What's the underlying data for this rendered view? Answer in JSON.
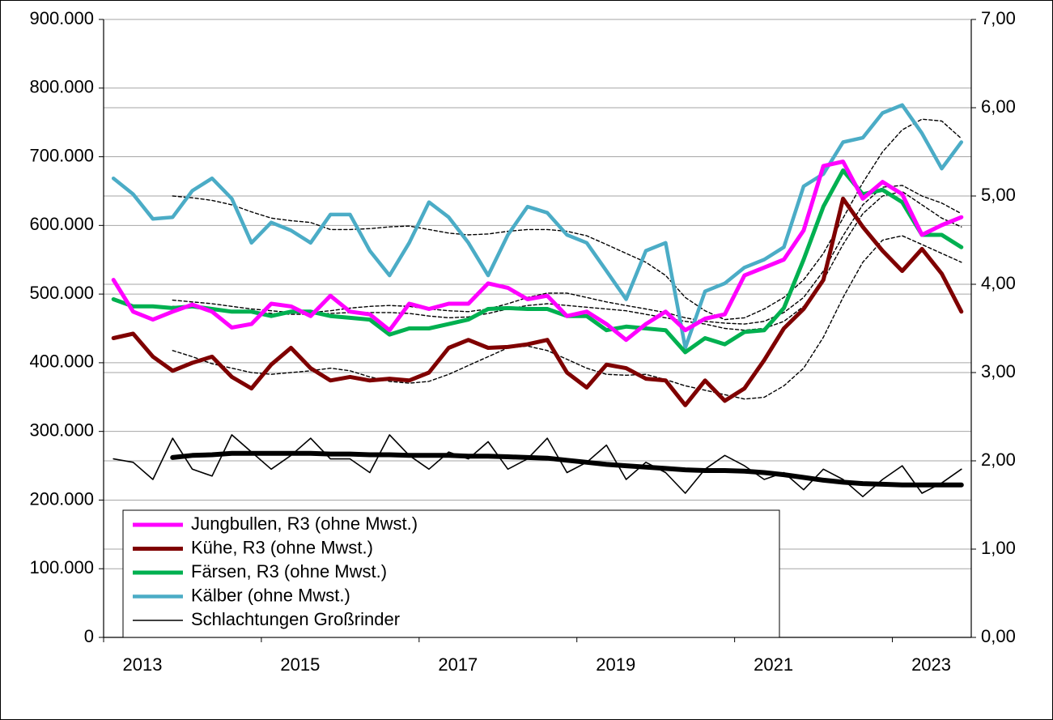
{
  "chart_data": {
    "type": "line",
    "x": [
      2013.125,
      2013.375,
      2013.625,
      2013.875,
      2014.125,
      2014.375,
      2014.625,
      2014.875,
      2015.125,
      2015.375,
      2015.625,
      2015.875,
      2016.125,
      2016.375,
      2016.625,
      2016.875,
      2017.125,
      2017.375,
      2017.625,
      2017.875,
      2018.125,
      2018.375,
      2018.625,
      2018.875,
      2019.125,
      2019.375,
      2019.625,
      2019.875,
      2020.125,
      2020.375,
      2020.625,
      2020.875,
      2021.125,
      2021.375,
      2021.625,
      2021.875,
      2022.125,
      2022.375,
      2022.625,
      2022.875,
      2023.125,
      2023.375,
      2023.625,
      2023.875
    ],
    "xlim": [
      2013,
      2024
    ],
    "xticks": [
      2013,
      2015,
      2017,
      2019,
      2021,
      2023
    ],
    "ylim": [
      0,
      900000
    ],
    "yticks": [
      0,
      {
        "value": 100000,
        "label": "100.000"
      },
      {
        "value": 200000,
        "label": "200.000"
      },
      {
        "value": 300000,
        "label": "300.000"
      },
      {
        "value": 400000,
        "label": "400.000"
      },
      {
        "value": 500000,
        "label": "500.000"
      },
      {
        "value": 600000,
        "label": "600.000"
      },
      {
        "value": 700000,
        "label": "700.000"
      },
      {
        "value": 800000,
        "label": "800.000"
      },
      {
        "value": 900000,
        "label": "900.000"
      }
    ],
    "y2lim": [
      0,
      7
    ],
    "y2ticks": [
      {
        "value": 0,
        "label": "0,00"
      },
      {
        "value": 1,
        "label": "1,00"
      },
      {
        "value": 2,
        "label": "2,00"
      },
      {
        "value": 3,
        "label": "3,00"
      },
      {
        "value": 4,
        "label": "4,00"
      },
      {
        "value": 5,
        "label": "5,00"
      },
      {
        "value": 6,
        "label": "6,00"
      },
      {
        "value": 7,
        "label": "7,00"
      }
    ],
    "grid": true,
    "legend": "lower left",
    "series": [
      {
        "name": "Schlachtungen Großrinder",
        "color": "#000000",
        "line_width": 1.6,
        "values": [
          260000,
          255000,
          230000,
          290000,
          245000,
          235000,
          295000,
          270000,
          245000,
          265000,
          290000,
          260000,
          260000,
          240000,
          295000,
          265000,
          245000,
          270000,
          260000,
          285000,
          245000,
          260000,
          290000,
          240000,
          255000,
          280000,
          230000,
          255000,
          240000,
          210000,
          245000,
          265000,
          250000,
          230000,
          240000,
          215000,
          245000,
          230000,
          205000,
          230000,
          250000,
          210000,
          225000,
          245000
        ]
      },
      {
        "color": "#000000",
        "line_width": 6,
        "values": [
          null,
          null,
          null,
          262000,
          265000,
          266000,
          268000,
          268000,
          268000,
          268000,
          268000,
          267000,
          267000,
          266000,
          266000,
          265000,
          265000,
          265000,
          264000,
          264000,
          263000,
          262000,
          261000,
          258000,
          255000,
          252000,
          250000,
          248000,
          246000,
          244000,
          243000,
          243000,
          242000,
          240000,
          237000,
          233000,
          229000,
          226000,
          224000,
          223000,
          222000,
          222000,
          222000,
          222000
        ]
      },
      {
        "color": "#000000",
        "axis": "y2",
        "dash": true,
        "line_width": 1.4,
        "values": [
          null,
          null,
          null,
          5.0,
          4.98,
          4.95,
          4.9,
          4.82,
          4.75,
          4.72,
          4.7,
          4.62,
          4.62,
          4.63,
          4.65,
          4.66,
          4.62,
          4.58,
          4.56,
          4.57,
          4.6,
          4.62,
          4.62,
          4.6,
          4.55,
          4.45,
          4.35,
          4.25,
          4.1,
          3.85,
          3.7,
          3.6,
          3.62,
          3.72,
          3.85,
          4.05,
          4.35,
          4.75,
          5.15,
          5.5,
          5.75,
          5.87,
          5.85,
          5.65
        ]
      },
      {
        "color": "#000000",
        "axis": "y2",
        "dash": true,
        "line_width": 1.4,
        "values": [
          null,
          null,
          null,
          3.82,
          3.8,
          3.78,
          3.75,
          3.72,
          3.7,
          3.68,
          3.68,
          3.7,
          3.73,
          3.75,
          3.76,
          3.75,
          3.72,
          3.7,
          3.69,
          3.72,
          3.78,
          3.85,
          3.9,
          3.9,
          3.85,
          3.8,
          3.76,
          3.72,
          3.68,
          3.62,
          3.58,
          3.56,
          3.55,
          3.58,
          3.68,
          3.85,
          4.15,
          4.55,
          4.9,
          5.1,
          5.12,
          5.0,
          4.92,
          4.8
        ]
      },
      {
        "color": "#000000",
        "axis": "y2",
        "dash": true,
        "line_width": 1.4,
        "values": [
          null,
          null,
          null,
          3.75,
          3.74,
          3.72,
          3.7,
          3.68,
          3.67,
          3.66,
          3.66,
          3.67,
          3.68,
          3.68,
          3.68,
          3.67,
          3.64,
          3.62,
          3.63,
          3.67,
          3.72,
          3.76,
          3.78,
          3.76,
          3.74,
          3.72,
          3.7,
          3.66,
          3.62,
          3.58,
          3.55,
          3.5,
          3.48,
          3.5,
          3.58,
          3.75,
          4.05,
          4.45,
          4.8,
          5.0,
          5.05,
          4.9,
          4.75,
          4.65
        ]
      },
      {
        "color": "#000000",
        "axis": "y2",
        "dash": true,
        "line_width": 1.4,
        "values": [
          null,
          null,
          null,
          3.25,
          3.18,
          3.1,
          3.05,
          3.0,
          2.98,
          3.0,
          3.02,
          3.05,
          3.02,
          2.95,
          2.9,
          2.88,
          2.9,
          2.98,
          3.08,
          3.18,
          3.28,
          3.3,
          3.25,
          3.15,
          3.05,
          2.98,
          2.97,
          2.98,
          2.92,
          2.85,
          2.8,
          2.75,
          2.7,
          2.72,
          2.85,
          3.05,
          3.4,
          3.85,
          4.25,
          4.5,
          4.55,
          4.45,
          4.35,
          4.25
        ]
      },
      {
        "name": "Kälber (ohne Mwst.)",
        "color": "#4bacc6",
        "axis": "y2",
        "line_width": 4.5,
        "values": [
          5.2,
          5.02,
          4.74,
          4.76,
          5.06,
          5.2,
          4.97,
          4.47,
          4.7,
          4.61,
          4.47,
          4.79,
          4.79,
          4.38,
          4.1,
          4.47,
          4.93,
          4.76,
          4.47,
          4.1,
          4.56,
          4.88,
          4.81,
          4.56,
          4.47,
          4.15,
          3.83,
          4.38,
          4.47,
          3.28,
          3.92,
          4.01,
          4.19,
          4.28,
          4.42,
          5.11,
          5.25,
          5.61,
          5.66,
          5.94,
          6.03,
          5.71,
          5.31,
          5.61
        ]
      },
      {
        "name": "Kühe, R3 (ohne Mwst.)",
        "color": "#7f0000",
        "axis": "y2",
        "line_width": 5,
        "values": [
          3.39,
          3.44,
          3.18,
          3.02,
          3.11,
          3.18,
          2.95,
          2.82,
          3.09,
          3.28,
          3.05,
          2.91,
          2.95,
          2.91,
          2.93,
          2.91,
          3.0,
          3.28,
          3.37,
          3.28,
          3.29,
          3.32,
          3.37,
          3.0,
          2.83,
          3.09,
          3.05,
          2.93,
          2.91,
          2.63,
          2.91,
          2.68,
          2.82,
          3.14,
          3.5,
          3.72,
          4.05,
          4.97,
          4.65,
          4.38,
          4.15,
          4.4,
          4.12,
          3.69
        ]
      },
      {
        "name": "Färsen, R3 (ohne Mwst.)",
        "color": "#00b050",
        "axis": "y2",
        "line_width": 5,
        "values": [
          3.83,
          3.75,
          3.75,
          3.73,
          3.75,
          3.72,
          3.69,
          3.69,
          3.64,
          3.69,
          3.69,
          3.64,
          3.62,
          3.6,
          3.43,
          3.5,
          3.5,
          3.55,
          3.6,
          3.72,
          3.73,
          3.72,
          3.72,
          3.64,
          3.64,
          3.48,
          3.52,
          3.5,
          3.48,
          3.23,
          3.39,
          3.32,
          3.46,
          3.48,
          3.73,
          4.28,
          4.88,
          5.29,
          5.02,
          5.07,
          4.93,
          4.56,
          4.56,
          4.42
        ]
      },
      {
        "name": "Jungbullen, R3 (ohne Mwst.)",
        "color": "#ff00ff",
        "axis": "y2",
        "line_width": 5,
        "values": [
          4.05,
          3.69,
          3.6,
          3.69,
          3.77,
          3.69,
          3.51,
          3.55,
          3.78,
          3.75,
          3.64,
          3.87,
          3.69,
          3.66,
          3.48,
          3.78,
          3.72,
          3.78,
          3.78,
          4.01,
          3.96,
          3.83,
          3.87,
          3.64,
          3.69,
          3.55,
          3.37,
          3.55,
          3.69,
          3.48,
          3.61,
          3.66,
          4.1,
          4.19,
          4.28,
          4.61,
          5.34,
          5.39,
          4.97,
          5.16,
          5.02,
          4.56,
          4.67,
          4.76
        ]
      }
    ],
    "legend_order": [
      9,
      7,
      8,
      6,
      0
    ]
  }
}
